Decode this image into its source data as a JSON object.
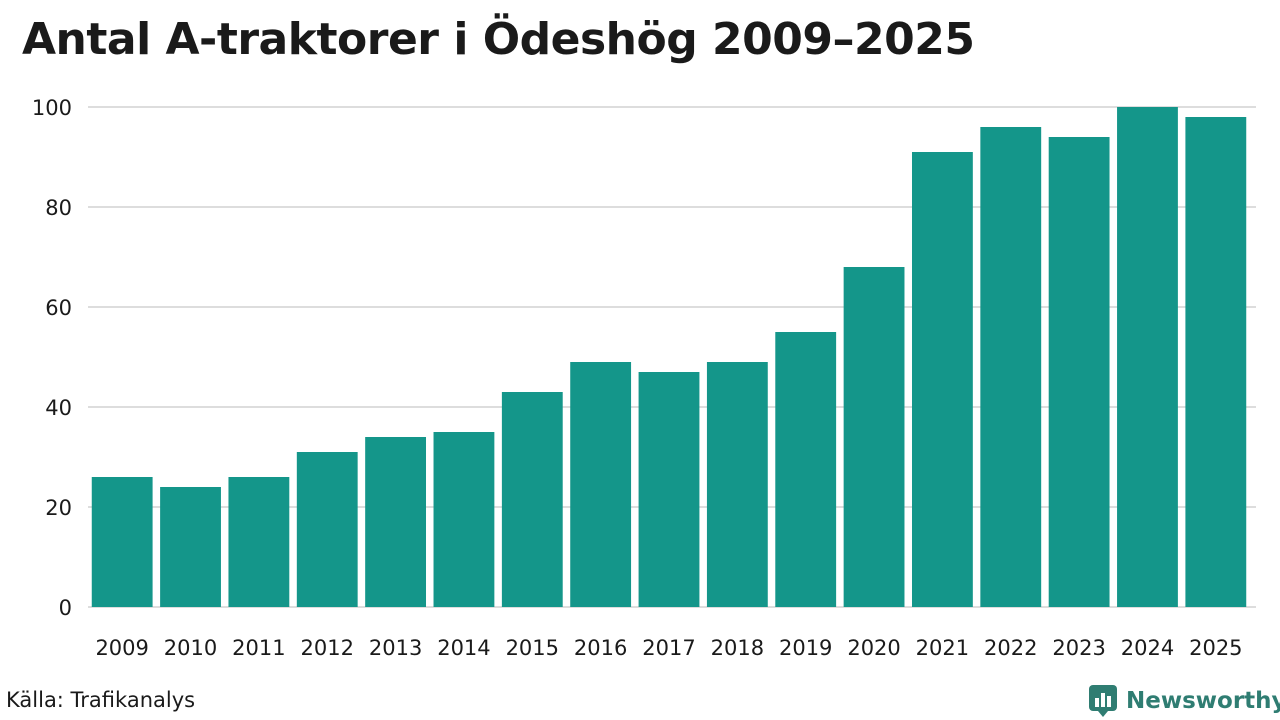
{
  "chart_data": {
    "type": "bar",
    "title": "Antal A-traktorer i Ödeshög 2009–2025",
    "categories": [
      "2009",
      "2010",
      "2011",
      "2012",
      "2013",
      "2014",
      "2015",
      "2016",
      "2017",
      "2018",
      "2019",
      "2020",
      "2021",
      "2022",
      "2023",
      "2024",
      "2025"
    ],
    "values": [
      26,
      24,
      26,
      31,
      34,
      35,
      43,
      49,
      47,
      49,
      55,
      68,
      91,
      96,
      94,
      100,
      98
    ],
    "ylim": [
      0,
      100
    ],
    "yticks": [
      0,
      20,
      40,
      60,
      80,
      100
    ],
    "xlabel": "",
    "ylabel": "",
    "grid": true,
    "bar_color": "#14968a"
  },
  "source": "Källa: Trafikanalys",
  "brand": {
    "name": "Newsworthy",
    "color": "#2f7d72",
    "icon": "newsworthy-logo-icon"
  }
}
